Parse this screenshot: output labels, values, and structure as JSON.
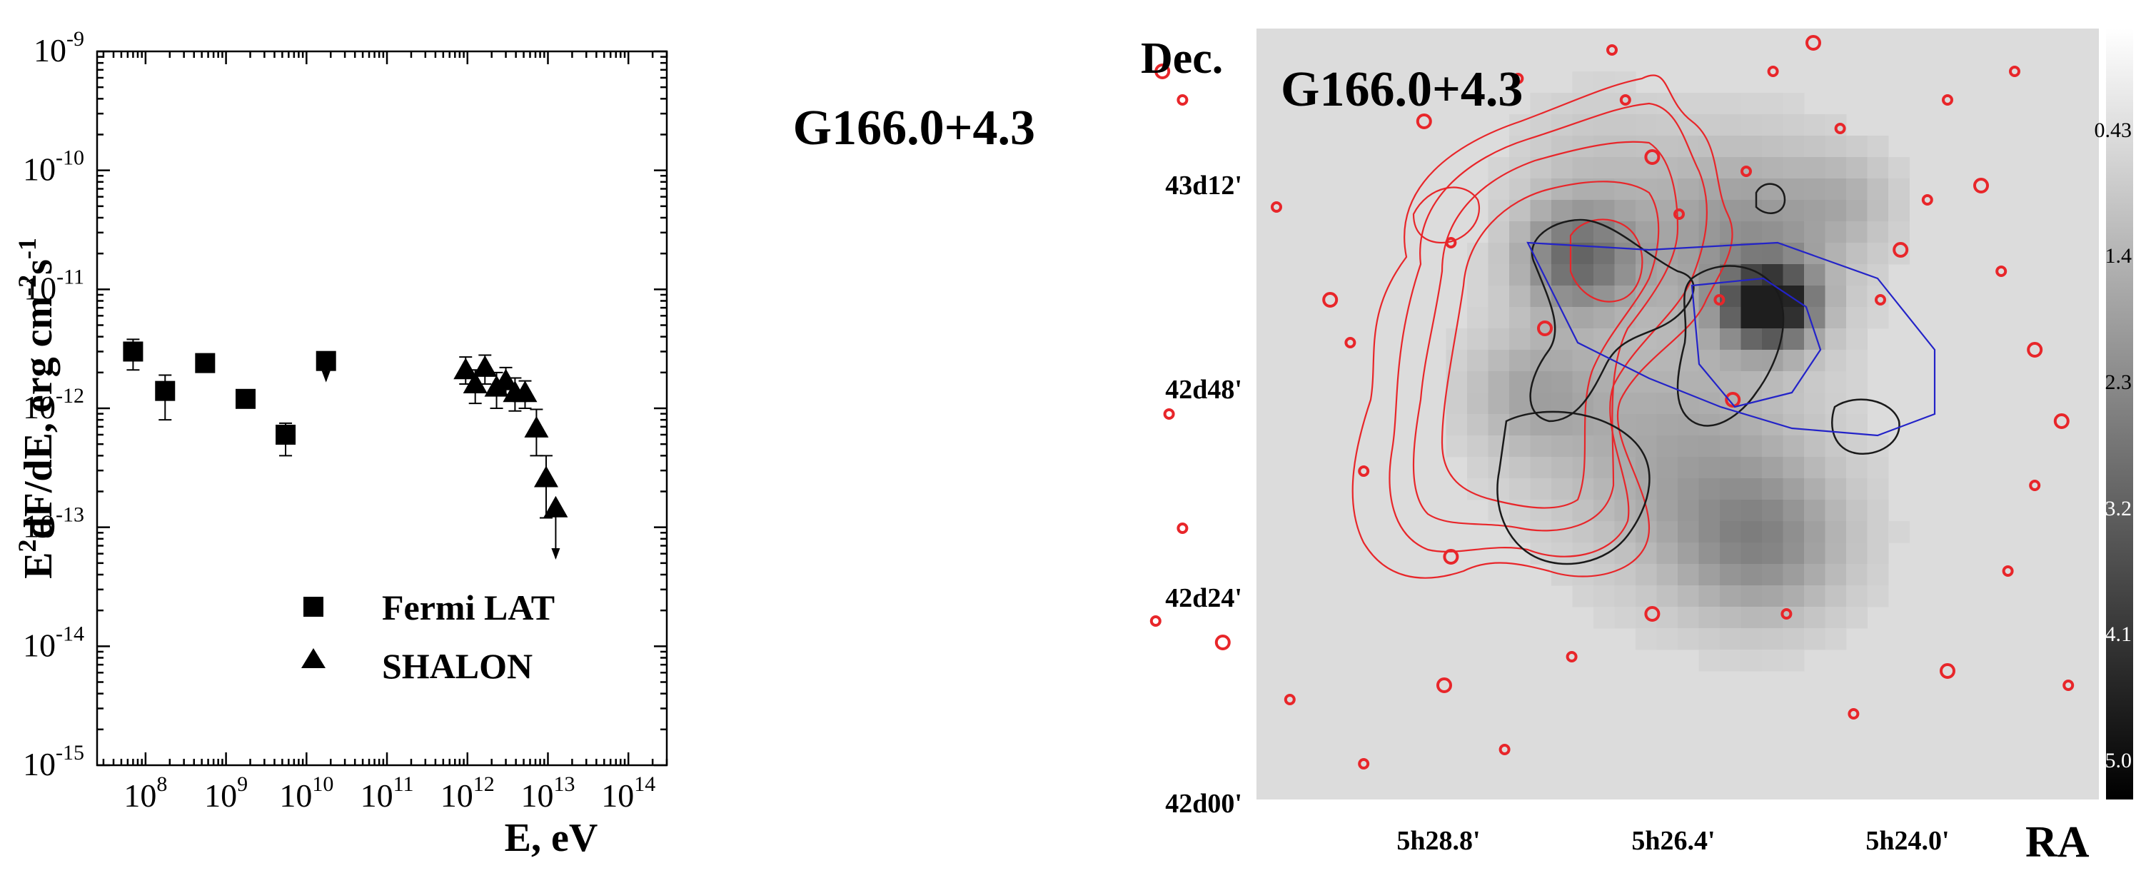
{
  "chart_data": [
    {
      "type": "scatter",
      "title": "G166.0+4.3",
      "xlabel": "E, eV",
      "ylabel_parts": [
        "E",
        "2",
        "dF/dE, erg cm",
        "-2",
        "s",
        "-1"
      ],
      "x_scale": "log",
      "y_scale": "log",
      "xlim": [
        25000000.0,
        300000000000000.0
      ],
      "ylim": [
        1e-15,
        1e-09
      ],
      "x_ticks": [
        {
          "value": 100000000.0,
          "base": "10",
          "exp": "8"
        },
        {
          "value": 1000000000.0,
          "base": "10",
          "exp": "9"
        },
        {
          "value": 10000000000.0,
          "base": "10",
          "exp": "10"
        },
        {
          "value": 100000000000.0,
          "base": "10",
          "exp": "11"
        },
        {
          "value": 1000000000000.0,
          "base": "10",
          "exp": "12"
        },
        {
          "value": 10000000000000.0,
          "base": "10",
          "exp": "13"
        },
        {
          "value": 100000000000000.0,
          "base": "10",
          "exp": "14"
        }
      ],
      "y_ticks": [
        {
          "value": 1e-09,
          "base": "10",
          "exp": "-9"
        },
        {
          "value": 1e-10,
          "base": "10",
          "exp": "-10"
        },
        {
          "value": 1e-11,
          "base": "10",
          "exp": "-11"
        },
        {
          "value": 1e-12,
          "base": "10",
          "exp": "-12"
        },
        {
          "value": 1e-13,
          "base": "10",
          "exp": "-13"
        },
        {
          "value": 1e-14,
          "base": "10",
          "exp": "-14"
        },
        {
          "value": 1e-15,
          "base": "10",
          "exp": "-15"
        }
      ],
      "legend_position": "bottom-left",
      "series": [
        {
          "name": "Fermi LAT",
          "marker": "square",
          "points": [
            {
              "x": 70000000.0,
              "y": 3e-12,
              "lo": 2.1e-12,
              "hi": 3.8e-12
            },
            {
              "x": 175000000.0,
              "y": 1.4e-12,
              "lo": 8e-13,
              "hi": 1.9e-12
            },
            {
              "x": 550000000.0,
              "y": 2.4e-12
            },
            {
              "x": 1750000000.0,
              "y": 1.2e-12
            },
            {
              "x": 5500000000.0,
              "y": 6e-13,
              "lo": 4e-13,
              "hi": 7.5e-13
            },
            {
              "x": 17500000000.0,
              "y": 2.5e-12,
              "upper_limit": true,
              "arrow_to": 1.7e-12
            }
          ]
        },
        {
          "name": "SHALON",
          "marker": "triangle",
          "points": [
            {
              "x": 950000000000.0,
              "y": 2.1e-12,
              "lo": 1.6e-12,
              "hi": 2.7e-12
            },
            {
              "x": 1250000000000.0,
              "y": 1.6e-12,
              "lo": 1.1e-12,
              "hi": 2.1e-12
            },
            {
              "x": 1650000000000.0,
              "y": 2.2e-12,
              "lo": 1.6e-12,
              "hi": 2.8e-12
            },
            {
              "x": 2300000000000.0,
              "y": 1.5e-12,
              "lo": 1e-12,
              "hi": 2e-12
            },
            {
              "x": 3000000000000.0,
              "y": 1.7e-12,
              "lo": 1.3e-12,
              "hi": 2.2e-12
            },
            {
              "x": 3900000000000.0,
              "y": 1.35e-12,
              "lo": 9.5e-13,
              "hi": 1.8e-12
            },
            {
              "x": 5200000000000.0,
              "y": 1.35e-12,
              "lo": 1e-12,
              "hi": 1.7e-12
            },
            {
              "x": 7200000000000.0,
              "y": 6.8e-13,
              "lo": 4e-13,
              "hi": 9.8e-13
            },
            {
              "x": 9500000000000.0,
              "y": 2.6e-13,
              "lo": 1.2e-13,
              "hi": 4e-13
            },
            {
              "x": 12500000000000.0,
              "y": 1.45e-13,
              "upper_limit": true,
              "arrow_to": 5.5e-14
            }
          ]
        }
      ]
    },
    {
      "type": "heatmap",
      "title": "G166.0+4.3",
      "xlabel": "RA",
      "ylabel": "Dec.",
      "x_ticks": [
        "5h28.8'",
        "5h26.4'",
        "5h24.0'"
      ],
      "y_ticks": [
        "43d12'",
        "42d48'",
        "42d24'",
        "42d00'"
      ],
      "colorbar_ticks": [
        "0.43",
        "1.4",
        "2.3",
        "3.2",
        "4.1",
        "5.0"
      ],
      "colorbar_range": [
        0,
        5.3
      ],
      "contour_colors": {
        "red": "#e8262a",
        "black": "#1a1a1a",
        "blue": "#2323c8"
      }
    }
  ]
}
